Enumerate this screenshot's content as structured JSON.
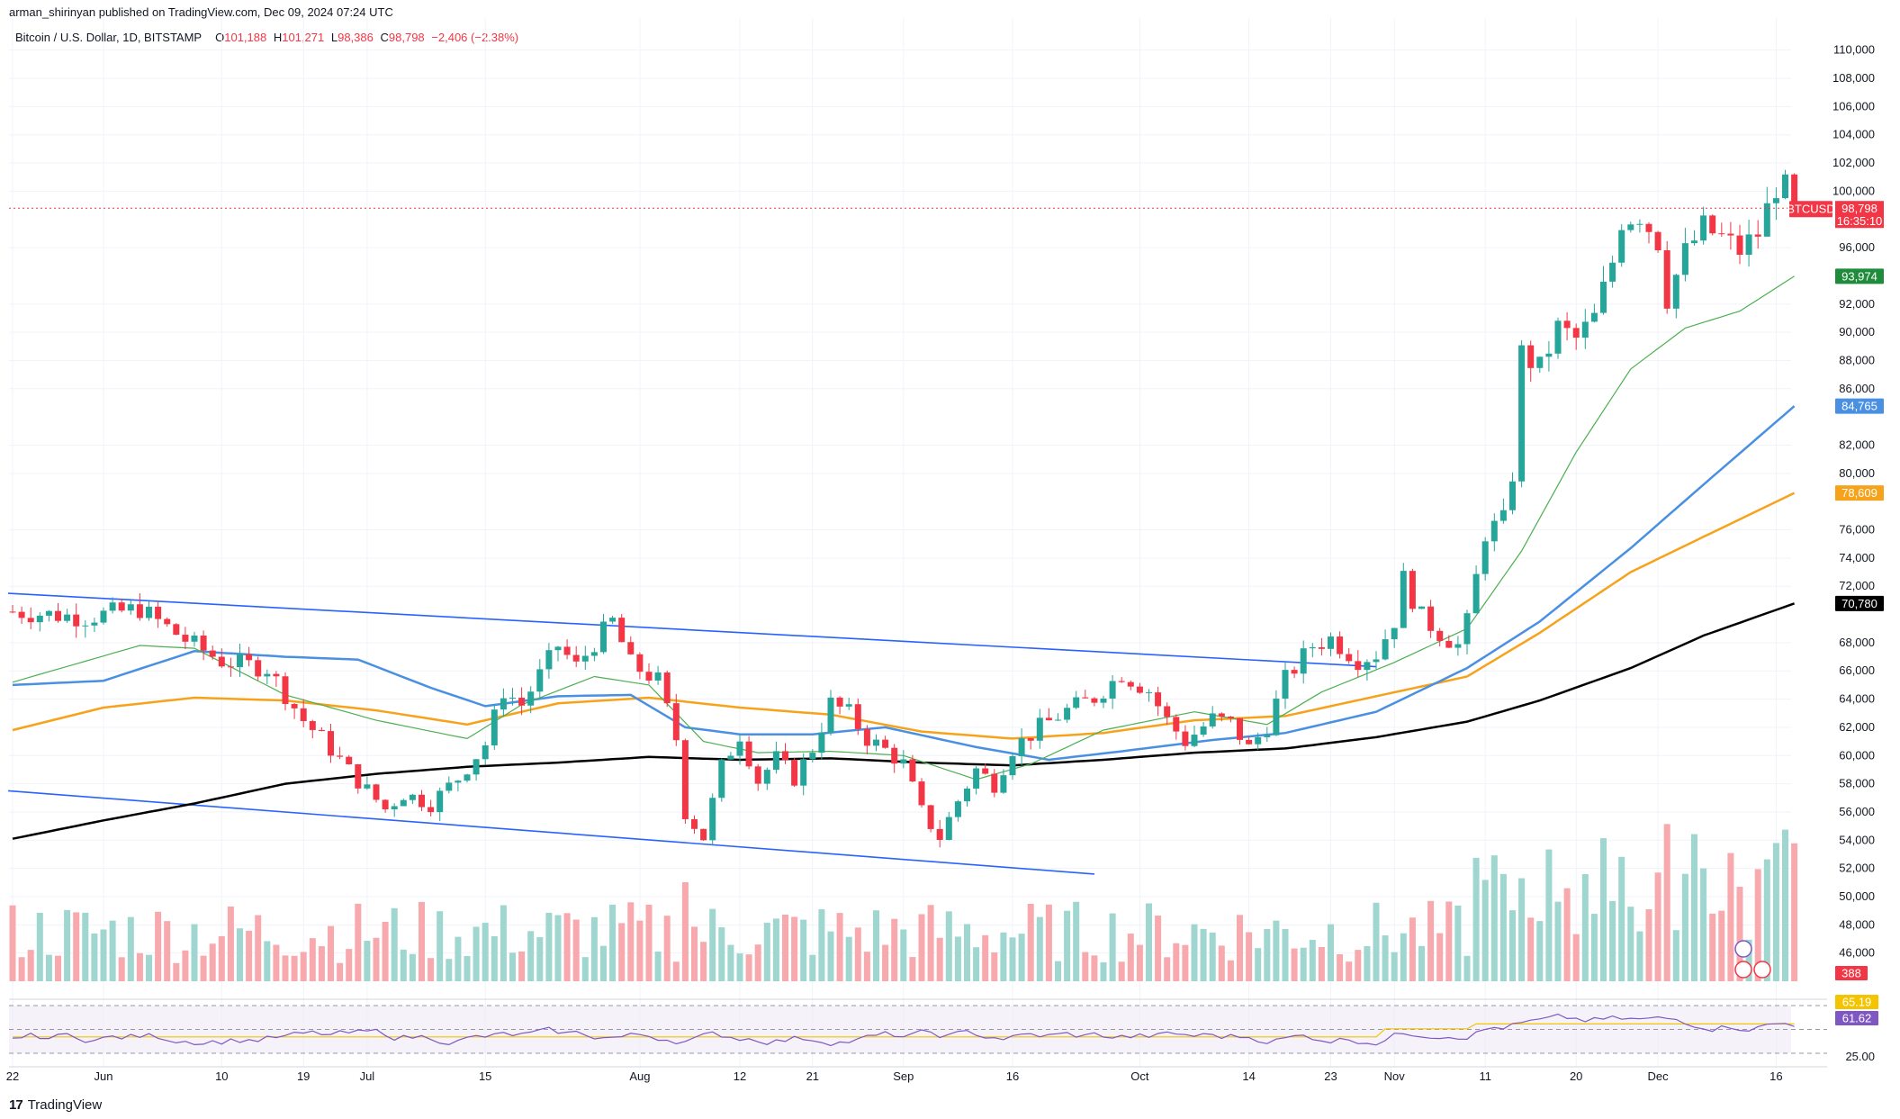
{
  "header": {
    "published_by": "arman_shirinyan published on TradingView.com, Dec 09, 2024 07:24 UTC",
    "symbol_title": "Bitcoin / U.S. Dollar, 1D, BITSTAMP",
    "open_label": "O",
    "open": "101,188",
    "high_label": "H",
    "high": "101,271",
    "low_label": "L",
    "low": "98,386",
    "close_label": "C",
    "close": "98,798",
    "change": "−2,406 (−2.38%)"
  },
  "footer": {
    "brand": "TradingView",
    "logo": "17"
  },
  "colors": {
    "up": "#26a69a",
    "down": "#f23645",
    "up_vol": "#9fd6d0",
    "down_vol": "#f7a9ad",
    "ma20": "#4caf50",
    "ma50": "#4a90e2",
    "ma100": "#f7a21b",
    "ma200": "#000000",
    "trend": "#2962ff",
    "rsi": "#7e57c2",
    "rsi_ma": "#f5c400"
  },
  "chart_data": {
    "type": "candlestick",
    "title": "Bitcoin / U.S. Dollar, 1D, BITSTAMP",
    "ylim": [
      44000,
      111000
    ],
    "y_ticks": [
      "110,000",
      "108,000",
      "106,000",
      "104,000",
      "102,000",
      "100,000",
      "96,000",
      "92,000",
      "90,000",
      "88,000",
      "86,000",
      "82,000",
      "80,000",
      "76,000",
      "74,000",
      "72,000",
      "68,000",
      "66,000",
      "64,000",
      "62,000",
      "60,000",
      "58,000",
      "56,000",
      "54,000",
      "52,000",
      "50,000",
      "48,000",
      "46,000"
    ],
    "x_ticks": [
      "22",
      "Jun",
      "10",
      "19",
      "Jul",
      "15",
      "Aug",
      "12",
      "21",
      "Sep",
      "16",
      "Oct",
      "14",
      "23",
      "Nov",
      "11",
      "20",
      "Dec",
      "16"
    ],
    "price_keypoints": [
      [
        0,
        70200
      ],
      [
        8,
        69800
      ],
      [
        14,
        70400
      ],
      [
        19,
        68200
      ],
      [
        23,
        66700
      ],
      [
        28,
        66200
      ],
      [
        32,
        62500
      ],
      [
        34,
        61200
      ],
      [
        38,
        58200
      ],
      [
        41,
        56200
      ],
      [
        43,
        57300
      ],
      [
        46,
        56600
      ],
      [
        49,
        58400
      ],
      [
        52,
        60800
      ],
      [
        54,
        64600
      ],
      [
        56,
        63600
      ],
      [
        60,
        67800
      ],
      [
        62,
        66300
      ],
      [
        64,
        68000
      ],
      [
        66,
        69500
      ],
      [
        68,
        66500
      ],
      [
        71,
        65300
      ],
      [
        73,
        61200
      ],
      [
        74,
        56000
      ],
      [
        76,
        54200
      ],
      [
        78,
        59200
      ],
      [
        80,
        61500
      ],
      [
        82,
        58200
      ],
      [
        84,
        59800
      ],
      [
        86,
        58400
      ],
      [
        88,
        60500
      ],
      [
        90,
        63700
      ],
      [
        92,
        63000
      ],
      [
        94,
        61200
      ],
      [
        96,
        60400
      ],
      [
        98,
        59400
      ],
      [
        100,
        56000
      ],
      [
        102,
        54200
      ],
      [
        104,
        56800
      ],
      [
        106,
        59000
      ],
      [
        108,
        58000
      ],
      [
        110,
        60500
      ],
      [
        113,
        62000
      ],
      [
        116,
        63200
      ],
      [
        119,
        64100
      ],
      [
        122,
        65800
      ],
      [
        125,
        64600
      ],
      [
        127,
        62500
      ],
      [
        129,
        61000
      ],
      [
        132,
        62600
      ],
      [
        134,
        62300
      ],
      [
        136,
        60500
      ],
      [
        138,
        62100
      ],
      [
        140,
        65400
      ],
      [
        143,
        67800
      ],
      [
        145,
        68300
      ],
      [
        148,
        66800
      ],
      [
        150,
        67200
      ],
      [
        152,
        69600
      ],
      [
        153,
        72500
      ],
      [
        155,
        69800
      ],
      [
        157,
        68700
      ],
      [
        159,
        67800
      ],
      [
        160,
        69400
      ],
      [
        162,
        75800
      ],
      [
        164,
        76600
      ],
      [
        165,
        80000
      ],
      [
        166,
        88500
      ],
      [
        168,
        87400
      ],
      [
        170,
        90300
      ],
      [
        172,
        89500
      ],
      [
        174,
        91000
      ],
      [
        176,
        95000
      ],
      [
        177,
        98000
      ],
      [
        179,
        98400
      ],
      [
        181,
        96500
      ],
      [
        182,
        92500
      ],
      [
        184,
        95600
      ],
      [
        186,
        97400
      ],
      [
        188,
        96700
      ],
      [
        190,
        95800
      ],
      [
        192,
        97000
      ],
      [
        194,
        100400
      ],
      [
        195,
        101188
      ],
      [
        196,
        98798
      ]
    ],
    "series": [
      {
        "name": "MA 20",
        "last_value": "93,974",
        "color": "#4caf50"
      },
      {
        "name": "MA 50",
        "last_value": "84,765",
        "color": "#4a90e2"
      },
      {
        "name": "MA 100",
        "last_value": "78,609",
        "color": "#f7a21b"
      },
      {
        "name": "MA 200",
        "last_value": "70,780",
        "color": "#000000"
      }
    ],
    "ma_keypoints": {
      "ma20": [
        [
          0,
          65200
        ],
        [
          14,
          67800
        ],
        [
          20,
          67600
        ],
        [
          30,
          64300
        ],
        [
          40,
          62500
        ],
        [
          50,
          61200
        ],
        [
          56,
          63600
        ],
        [
          64,
          65600
        ],
        [
          70,
          65000
        ],
        [
          76,
          61000
        ],
        [
          82,
          60200
        ],
        [
          90,
          60300
        ],
        [
          98,
          60000
        ],
        [
          106,
          58300
        ],
        [
          112,
          59400
        ],
        [
          120,
          61800
        ],
        [
          130,
          63100
        ],
        [
          138,
          62200
        ],
        [
          144,
          64500
        ],
        [
          152,
          66600
        ],
        [
          160,
          69000
        ],
        [
          166,
          74500
        ],
        [
          172,
          81500
        ],
        [
          178,
          87400
        ],
        [
          184,
          90300
        ],
        [
          190,
          91500
        ],
        [
          196,
          93974
        ]
      ],
      "ma50": [
        [
          0,
          65000
        ],
        [
          10,
          65300
        ],
        [
          20,
          67400
        ],
        [
          30,
          67000
        ],
        [
          38,
          66800
        ],
        [
          46,
          64800
        ],
        [
          52,
          63500
        ],
        [
          60,
          64200
        ],
        [
          68,
          64300
        ],
        [
          74,
          62000
        ],
        [
          80,
          61500
        ],
        [
          88,
          61500
        ],
        [
          96,
          62000
        ],
        [
          106,
          60600
        ],
        [
          114,
          59700
        ],
        [
          122,
          60300
        ],
        [
          132,
          61100
        ],
        [
          140,
          61600
        ],
        [
          150,
          63100
        ],
        [
          160,
          66200
        ],
        [
          168,
          69500
        ],
        [
          178,
          74700
        ],
        [
          186,
          79200
        ],
        [
          196,
          84765
        ]
      ],
      "ma100": [
        [
          0,
          61800
        ],
        [
          10,
          63400
        ],
        [
          20,
          64100
        ],
        [
          30,
          63900
        ],
        [
          40,
          63200
        ],
        [
          50,
          62200
        ],
        [
          60,
          63700
        ],
        [
          70,
          64100
        ],
        [
          80,
          63400
        ],
        [
          90,
          62900
        ],
        [
          100,
          61700
        ],
        [
          110,
          61200
        ],
        [
          120,
          61600
        ],
        [
          130,
          62500
        ],
        [
          140,
          62800
        ],
        [
          150,
          64200
        ],
        [
          160,
          65600
        ],
        [
          168,
          68700
        ],
        [
          178,
          73000
        ],
        [
          186,
          75500
        ],
        [
          196,
          78609
        ]
      ],
      "ma200": [
        [
          0,
          54100
        ],
        [
          10,
          55400
        ],
        [
          20,
          56600
        ],
        [
          30,
          58000
        ],
        [
          40,
          58700
        ],
        [
          50,
          59200
        ],
        [
          60,
          59500
        ],
        [
          70,
          59900
        ],
        [
          80,
          59700
        ],
        [
          90,
          59800
        ],
        [
          100,
          59500
        ],
        [
          110,
          59300
        ],
        [
          120,
          59700
        ],
        [
          130,
          60200
        ],
        [
          140,
          60500
        ],
        [
          150,
          61300
        ],
        [
          160,
          62400
        ],
        [
          168,
          63900
        ],
        [
          178,
          66200
        ],
        [
          186,
          68500
        ],
        [
          196,
          70780
        ]
      ]
    },
    "trendlines": [
      {
        "name": "upper-channel",
        "from": [
          0,
          71500
        ],
        "to": [
          150,
          66300
        ]
      },
      {
        "name": "lower-channel",
        "from": [
          0,
          57500
        ],
        "to": [
          119,
          51600
        ]
      }
    ],
    "current_price_label": "BTCUSD",
    "current_price": "98,798",
    "countdown": "16:35:10",
    "volume_label": "388",
    "rsi": {
      "value": "61.62",
      "ma_value": "65.19",
      "tick": "25.00"
    }
  }
}
